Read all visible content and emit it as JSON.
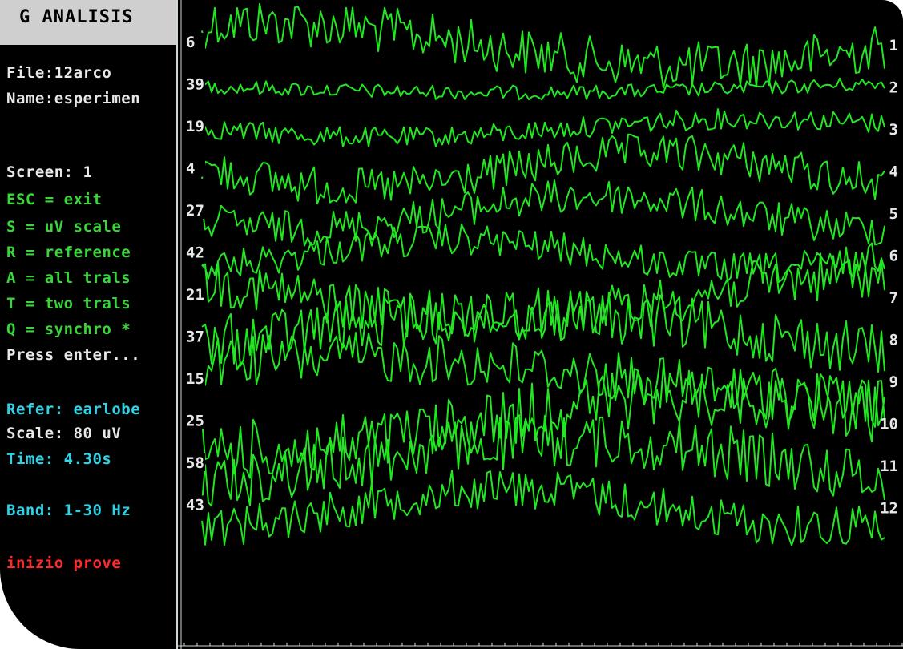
{
  "app": {
    "title": "G ANALISIS"
  },
  "sidebar": {
    "file_label": "File:12arco",
    "name_label": "Name:esperimen",
    "screen_label": "Screen: 1",
    "commands": [
      {
        "text": "ESC = exit",
        "color": "#39d639"
      },
      {
        "text": "S = uV scale",
        "color": "#39d639"
      },
      {
        "text": "R = reference",
        "color": "#39d639"
      },
      {
        "text": "A = all trals",
        "color": "#39d639"
      },
      {
        "text": "T = two trals",
        "color": "#39d639"
      },
      {
        "text": "Q = synchro *",
        "color": "#39d639"
      }
    ],
    "prompt": "Press enter...",
    "refer": "Refer: earlobe",
    "scale": "Scale: 80 uV",
    "time": "Time: 4.30s",
    "band": "Band: 1-30 Hz",
    "status": "inizio prove"
  },
  "plot": {
    "trace_color": "#22e622",
    "left_labels": [
      "6",
      "39",
      "19",
      "4",
      "27",
      "42",
      "21",
      "37",
      "15",
      "25",
      "58",
      "43"
    ],
    "right_labels": [
      "1",
      "2",
      "3",
      "4",
      "5",
      "6",
      "7",
      "8",
      "9",
      "10",
      "11",
      "12"
    ],
    "channel_amplitudes": [
      30,
      9,
      13,
      24,
      22,
      20,
      30,
      34,
      32,
      38,
      34,
      26
    ]
  }
}
